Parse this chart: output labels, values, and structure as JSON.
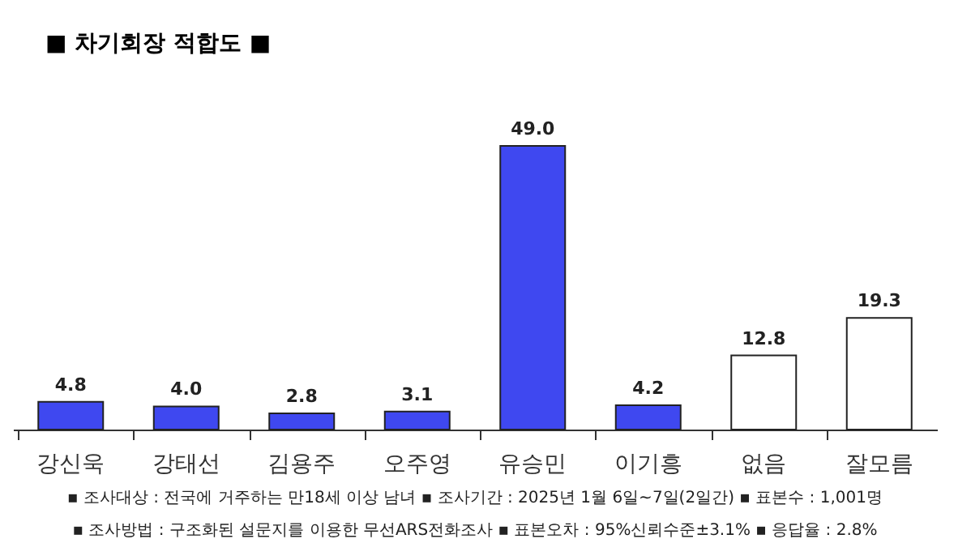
{
  "chart_data": {
    "type": "bar",
    "title": "■ 차기회장 적합도 ■",
    "categories": [
      "강신욱",
      "강태선",
      "김용주",
      "오주영",
      "유승민",
      "이기흥",
      "없음",
      "잘모름"
    ],
    "values": [
      4.8,
      4.0,
      2.8,
      3.1,
      49.0,
      4.2,
      12.8,
      19.3
    ],
    "colors": [
      "#3f48f0",
      "#3f48f0",
      "#3f48f0",
      "#3f48f0",
      "#3f48f0",
      "#3f48f0",
      "#ffffff",
      "#ffffff"
    ],
    "value_labels": [
      "4.8",
      "4.0",
      "2.8",
      "3.1",
      "49.0",
      "4.2",
      "12.8",
      "19.3"
    ],
    "annotations": [
      "▪ 조사대상 : 전국에 거주하는 만18세 이상 남녀   ▪ 조사기간 : 2025년 1월 6일~7일(2일간)   ▪ 표본수 : 1,001명",
      "▪ 조사방법 : 구조화된 설문지를 이용한 무선ARS전화조사   ▪ 표본오차 : 95%신뢰수준±3.1%   ▪ 응답율 : 2.8%"
    ],
    "grid": false
  }
}
